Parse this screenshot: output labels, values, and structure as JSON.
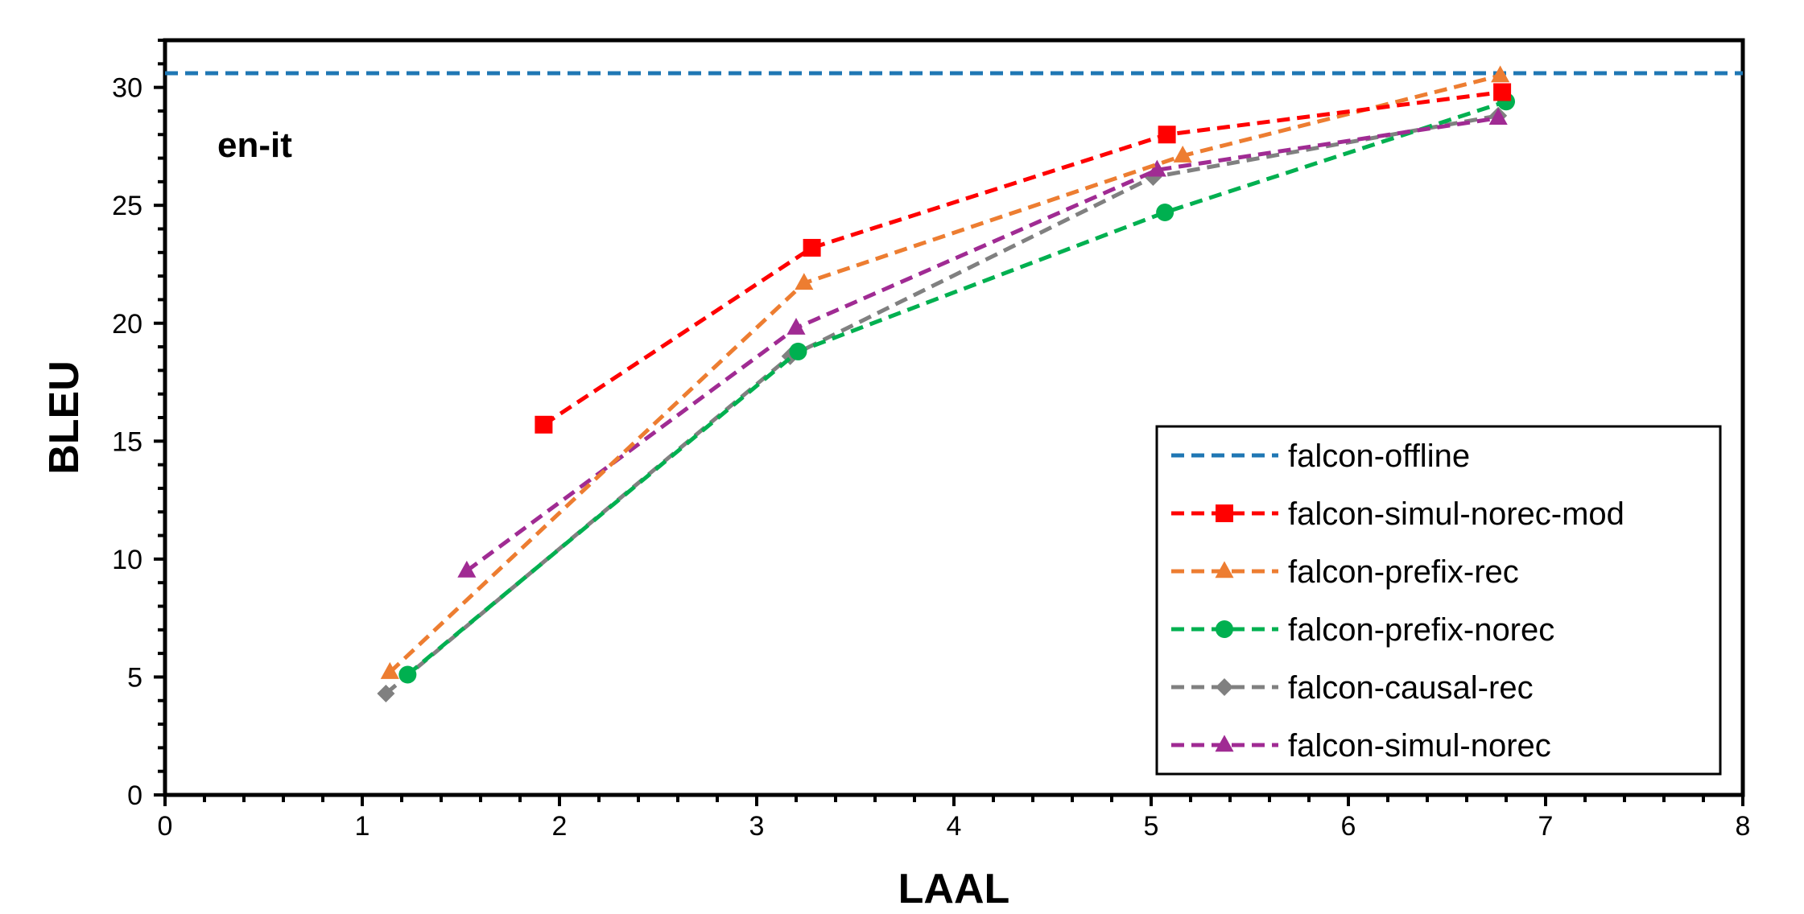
{
  "chart_data": {
    "type": "line",
    "title": "",
    "annotation": "en-it",
    "xlabel": "LAAL",
    "ylabel": "BLEU",
    "xlim": [
      0,
      8
    ],
    "ylim": [
      0,
      32
    ],
    "xticks": [
      0,
      1,
      2,
      3,
      4,
      5,
      6,
      7,
      8
    ],
    "yticks": [
      0,
      5,
      10,
      15,
      20,
      25,
      30
    ],
    "xtick_labels": [
      "0",
      "1",
      "2",
      "3",
      "4",
      "5",
      "6",
      "7",
      "8"
    ],
    "ytick_labels": [
      "0",
      "5",
      "10",
      "15",
      "20",
      "25",
      "30"
    ],
    "grid": false,
    "legend_position": "bottom-right",
    "series": [
      {
        "name": "falcon-offline",
        "color": "#1F77B4",
        "marker": "none",
        "style": "dashed",
        "hline": 30.6
      },
      {
        "name": "falcon-simul-norec-mod",
        "color": "#FF0000",
        "marker": "square",
        "style": "dashed",
        "x": [
          1.92,
          3.28,
          5.08,
          6.78
        ],
        "y": [
          15.7,
          23.2,
          28.0,
          29.8
        ]
      },
      {
        "name": "falcon-prefix-rec",
        "color": "#ED7D31",
        "marker": "triangle",
        "style": "dashed",
        "x": [
          1.14,
          3.24,
          5.16,
          6.77
        ],
        "y": [
          5.2,
          21.7,
          27.1,
          30.5
        ]
      },
      {
        "name": "falcon-prefix-norec",
        "color": "#00B050",
        "marker": "circle",
        "style": "dashed",
        "x": [
          1.23,
          3.21,
          5.07,
          6.8
        ],
        "y": [
          5.1,
          18.8,
          24.7,
          29.4
        ]
      },
      {
        "name": "falcon-causal-rec",
        "color": "#808080",
        "marker": "diamond",
        "style": "dashed",
        "x": [
          1.12,
          3.17,
          5.01,
          6.76
        ],
        "y": [
          4.3,
          18.6,
          26.2,
          28.8
        ]
      },
      {
        "name": "falcon-simul-norec",
        "color": "#A02B93",
        "marker": "triangle",
        "style": "dashed",
        "x": [
          1.53,
          3.2,
          5.03,
          6.76
        ],
        "y": [
          9.5,
          19.8,
          26.5,
          28.7
        ]
      }
    ]
  }
}
